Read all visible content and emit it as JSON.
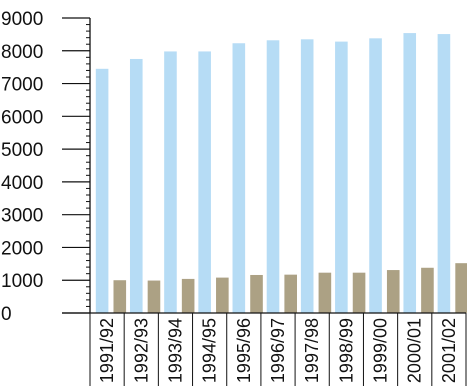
{
  "chart_data": {
    "type": "bar",
    "categories": [
      "1991/92",
      "1992/93",
      "1993/94",
      "1994/95",
      "1995/96",
      "1996/97",
      "1997/98",
      "1998/99",
      "1999/00",
      "2000/01",
      "2001/02"
    ],
    "series": [
      {
        "values": [
          7450,
          7750,
          7980,
          7980,
          8230,
          8320,
          8350,
          8280,
          8380,
          8540,
          8510
        ],
        "color": "#b6dcf5"
      },
      {
        "values": [
          1000,
          990,
          1040,
          1080,
          1160,
          1170,
          1230,
          1230,
          1310,
          1380,
          1520
        ],
        "color": "#aca184"
      }
    ],
    "ylim": [
      0,
      9000
    ],
    "yticks": [
      "0",
      "1000",
      "2000",
      "3000",
      "4000",
      "5000",
      "6000",
      "7000",
      "8000",
      "9000"
    ],
    "title": "",
    "xlabel": "",
    "ylabel": "",
    "grid": false,
    "axis_color": "#111111"
  }
}
